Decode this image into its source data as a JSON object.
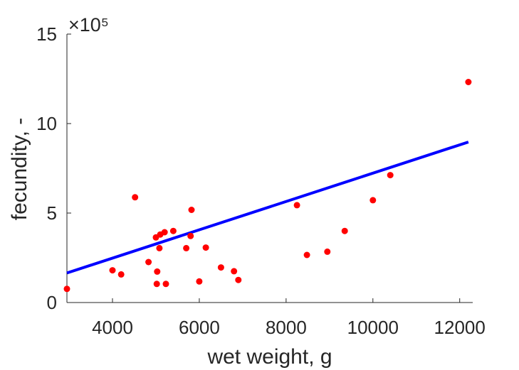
{
  "chart_data": {
    "type": "scatter",
    "xlabel": "wet weight, g",
    "ylabel": "fecundity, -",
    "y_exponent_label": "×10⁵",
    "xlim": [
      2950,
      12300
    ],
    "ylim": [
      0,
      15
    ],
    "xticks": [
      4000,
      6000,
      8000,
      10000,
      12000
    ],
    "xtick_labels": [
      "4000",
      "6000",
      "8000",
      "10000",
      "12000"
    ],
    "yticks": [
      0,
      5,
      10,
      15
    ],
    "ytick_labels": [
      "0",
      "5",
      "10",
      "15"
    ],
    "grid": false,
    "series": [
      {
        "kind": "scatter",
        "color": "#ff0000",
        "points": [
          [
            2950,
            0.76
          ],
          [
            4000,
            1.8
          ],
          [
            4200,
            1.57
          ],
          [
            4520,
            5.88
          ],
          [
            4830,
            2.26
          ],
          [
            5000,
            3.64
          ],
          [
            5020,
            1.04
          ],
          [
            5030,
            1.73
          ],
          [
            5080,
            3.04
          ],
          [
            5100,
            3.8
          ],
          [
            5200,
            3.93
          ],
          [
            5230,
            1.04
          ],
          [
            5400,
            4.0
          ],
          [
            5700,
            3.04
          ],
          [
            5800,
            3.72
          ],
          [
            5820,
            5.18
          ],
          [
            6000,
            1.18
          ],
          [
            6150,
            3.07
          ],
          [
            6500,
            1.96
          ],
          [
            6800,
            1.75
          ],
          [
            6900,
            1.26
          ],
          [
            8250,
            5.44
          ],
          [
            8480,
            2.66
          ],
          [
            8950,
            2.84
          ],
          [
            9350,
            4.0
          ],
          [
            10000,
            5.72
          ],
          [
            10400,
            7.12
          ],
          [
            12200,
            12.32
          ]
        ]
      },
      {
        "kind": "line",
        "color": "#0000ff",
        "points": [
          [
            2950,
            1.65
          ],
          [
            12200,
            8.97
          ]
        ]
      }
    ]
  }
}
